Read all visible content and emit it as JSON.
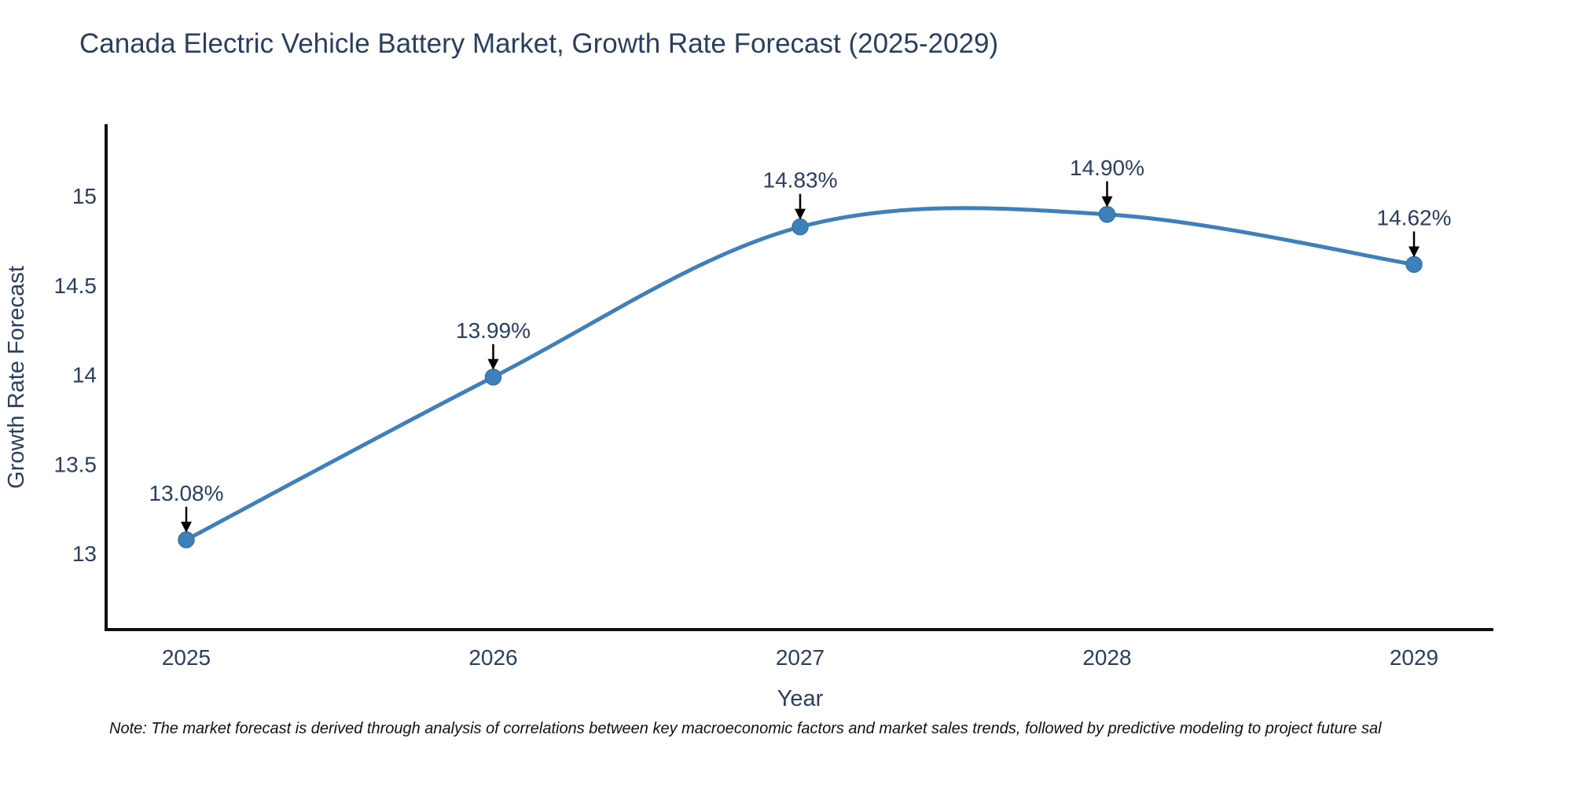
{
  "title": "Canada Electric Vehicle Battery Market, Growth Rate Forecast (2025-2029)",
  "note": "Note: The market forecast is derived through analysis of correlations between key macroeconomic factors and market sales trends, followed by predictive modeling to project future sal",
  "chart_data": {
    "type": "line",
    "title": "Canada Electric Vehicle Battery Market, Growth Rate Forecast (2025-2029)",
    "xlabel": "Year",
    "ylabel": "Growth Rate Forecast",
    "x": [
      2025,
      2026,
      2027,
      2028,
      2029
    ],
    "x_tick_labels": [
      "2025",
      "2026",
      "2027",
      "2028",
      "2029"
    ],
    "series": [
      {
        "name": "Growth Rate Forecast",
        "values": [
          13.08,
          13.99,
          14.83,
          14.9,
          14.62
        ]
      }
    ],
    "point_labels": [
      "13.08%",
      "13.99%",
      "14.83%",
      "14.90%",
      "14.62%"
    ],
    "y_ticks": [
      13,
      13.5,
      14,
      14.5,
      15
    ],
    "y_tick_labels": [
      "13",
      "13.5",
      "14",
      "14.5",
      "15"
    ],
    "ylim": [
      12.58,
      15.41
    ],
    "line_shape": "spline",
    "grid": false,
    "legend": "none",
    "colors": {
      "line": "#3d80bb",
      "marker": "#34769f",
      "marker_fill": "#3d80bb",
      "axis": "#0f0f0f",
      "text": "#2a3f5f",
      "annotation_arrow": "#000000"
    }
  }
}
